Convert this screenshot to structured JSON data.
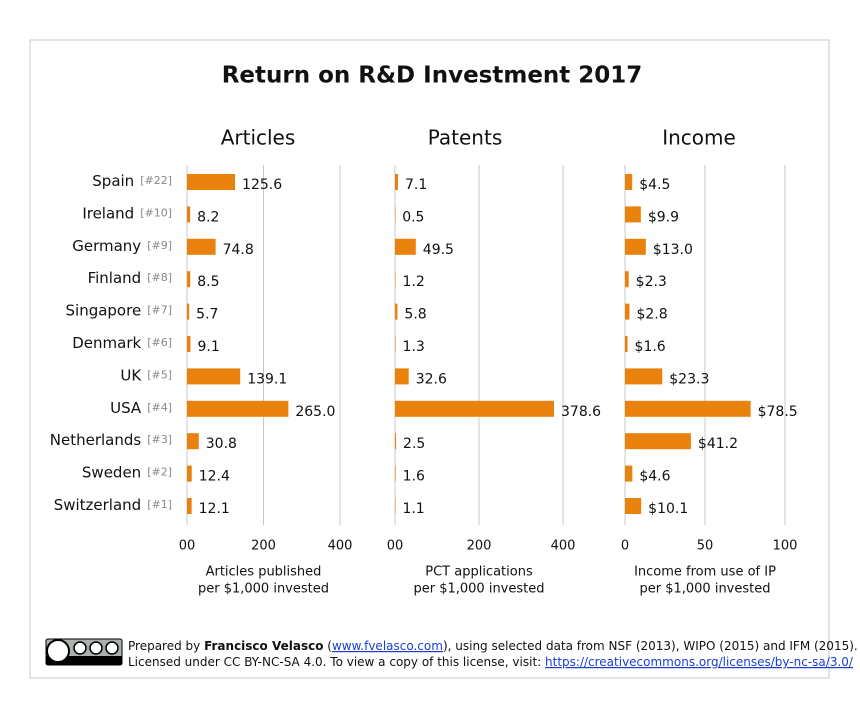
{
  "title": "Return on R&D Investment 2017",
  "footer": {
    "prefix": "Prepared by ",
    "author": "Francisco Velasco",
    "open": " (",
    "site": "www.fvelasco.com",
    "rest": "), using selected data from NSF (2013), WIPO (2015) and IFM (2015).",
    "license": "Licensed under CC BY-NC-SA 4.0. To view a copy of this license, visit: ",
    "url": "https://creativecommons.org/licenses/by-nc-sa/3.0/"
  },
  "chart_data": [
    {
      "type": "bar",
      "title": "Articles",
      "color": "#e8820c",
      "grid": true,
      "categories": [
        "Spain",
        "Ireland",
        "Germany",
        "Finland",
        "Singapore",
        "Denmark",
        "UK",
        "USA",
        "Netherlands",
        "Sweden",
        "Switzerland"
      ],
      "ranks": [
        "[#22]",
        "[#10]",
        "[#9]",
        "[#8]",
        "[#7]",
        "[#6]",
        "[#5]",
        "[#4]",
        "[#3]",
        "[#2]",
        "[#1]"
      ],
      "values": [
        125.6,
        8.2,
        74.8,
        8.5,
        5.7,
        9.1,
        139.1,
        265.0,
        30.8,
        12.4,
        12.1
      ],
      "value_labels": [
        "125.6",
        "8.2",
        "74.8",
        "8.5",
        "5.7",
        "9.1",
        "139.1",
        "265.0",
        "30.8",
        "12.4",
        "12.1"
      ],
      "xlim": [
        0,
        400
      ],
      "xticks": [
        {
          "value": 0,
          "label": "00"
        },
        200,
        400
      ],
      "xlabel": [
        "Articles published",
        "per $1,000 invested"
      ]
    },
    {
      "type": "bar",
      "title": "Patents",
      "color": "#e8820c",
      "grid": true,
      "values": [
        7.1,
        0.5,
        49.5,
        1.2,
        5.8,
        1.3,
        32.6,
        378.6,
        2.5,
        1.6,
        1.1
      ],
      "value_labels": [
        "7.1",
        "0.5",
        "49.5",
        "1.2",
        "5.8",
        "1.3",
        "32.6",
        "378.6",
        "2.5",
        "1.6",
        "1.1"
      ],
      "xlim": [
        0,
        400
      ],
      "xticks": [
        {
          "value": 0,
          "label": "00"
        },
        200,
        400
      ],
      "xlabel": [
        "PCT applications",
        "per $1,000 invested"
      ]
    },
    {
      "type": "bar",
      "title": "Income",
      "color": "#e8820c",
      "grid": true,
      "values": [
        4.5,
        9.9,
        13.0,
        2.3,
        2.8,
        1.6,
        23.3,
        78.5,
        41.2,
        4.6,
        10.1
      ],
      "value_labels": [
        "$4.5",
        "$9.9",
        "$13.0",
        "$2.3",
        "$2.8",
        "$1.6",
        "$23.3",
        "$78.5",
        "$41.2",
        "$4.6",
        "$10.1"
      ],
      "xlim": [
        0,
        100
      ],
      "xticks": [
        0,
        50,
        100
      ],
      "xlabel": [
        "Income from use of IP",
        "per $1,000 invested"
      ]
    }
  ]
}
